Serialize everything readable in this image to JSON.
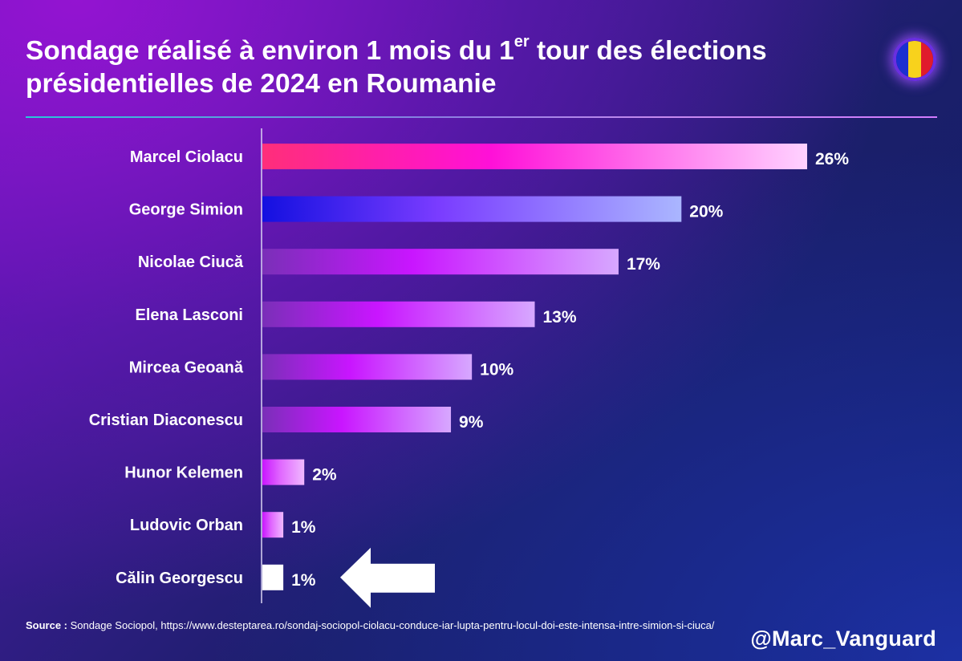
{
  "header": {
    "title_part1": "Sondage réalisé à environ 1 mois du 1",
    "title_sup": "er",
    "title_part2": " tour des élections présidentielles de 2024 en Roumanie"
  },
  "flag": {
    "icon": "romania-flag-icon",
    "colors": [
      "#1c2fd1",
      "#f8d21c",
      "#e01b2c"
    ]
  },
  "chart_data": {
    "type": "bar",
    "orientation": "horizontal",
    "categories": [
      "Marcel Ciolacu",
      "George Simion",
      "Nicolae Ciucă",
      "Elena Lasconi",
      "Mircea Geoană",
      "Cristian Diaconescu",
      "Hunor Kelemen",
      "Ludovic Orban",
      "Călin Georgescu"
    ],
    "values": [
      26,
      20,
      17,
      13,
      10,
      9,
      2,
      1,
      1
    ],
    "value_labels": [
      "26%",
      "20%",
      "17%",
      "13%",
      "10%",
      "9%",
      "2%",
      "1%",
      "1%"
    ],
    "unit": "%",
    "xlim": [
      0,
      26
    ],
    "grid": false,
    "highlight": {
      "category": "Călin Georgescu",
      "marker": "arrow-left-icon"
    },
    "bar_colors": [
      [
        "#ff2e7a",
        "#ff10d8",
        "#ffd2ff"
      ],
      [
        "#1410e0",
        "#7a3cff",
        "#aab6ff"
      ],
      [
        "#7a2fb8",
        "#c915ff",
        "#d7a8ff"
      ],
      [
        "#7a2fb8",
        "#c915ff",
        "#d7a8ff"
      ],
      [
        "#7a2fb8",
        "#c915ff",
        "#d7a8ff"
      ],
      [
        "#7a2fb8",
        "#c915ff",
        "#d7a8ff"
      ],
      [
        "#c915ff",
        "#e066ff",
        "#f0b8ff"
      ],
      [
        "#c915ff",
        "#e066ff",
        "#f0b8ff"
      ],
      [
        "#ffffff",
        "#ffffff",
        "#ffffff"
      ]
    ]
  },
  "footer": {
    "source_label": "Source :",
    "source_text": " Sondage Sociopol, https://www.desteptarea.ro/sondaj-sociopol-ciolacu-conduce-iar-lupta-pentru-locul-doi-este-intensa-intre-simion-si-ciuca/",
    "handle": "@Marc_Vanguard"
  }
}
